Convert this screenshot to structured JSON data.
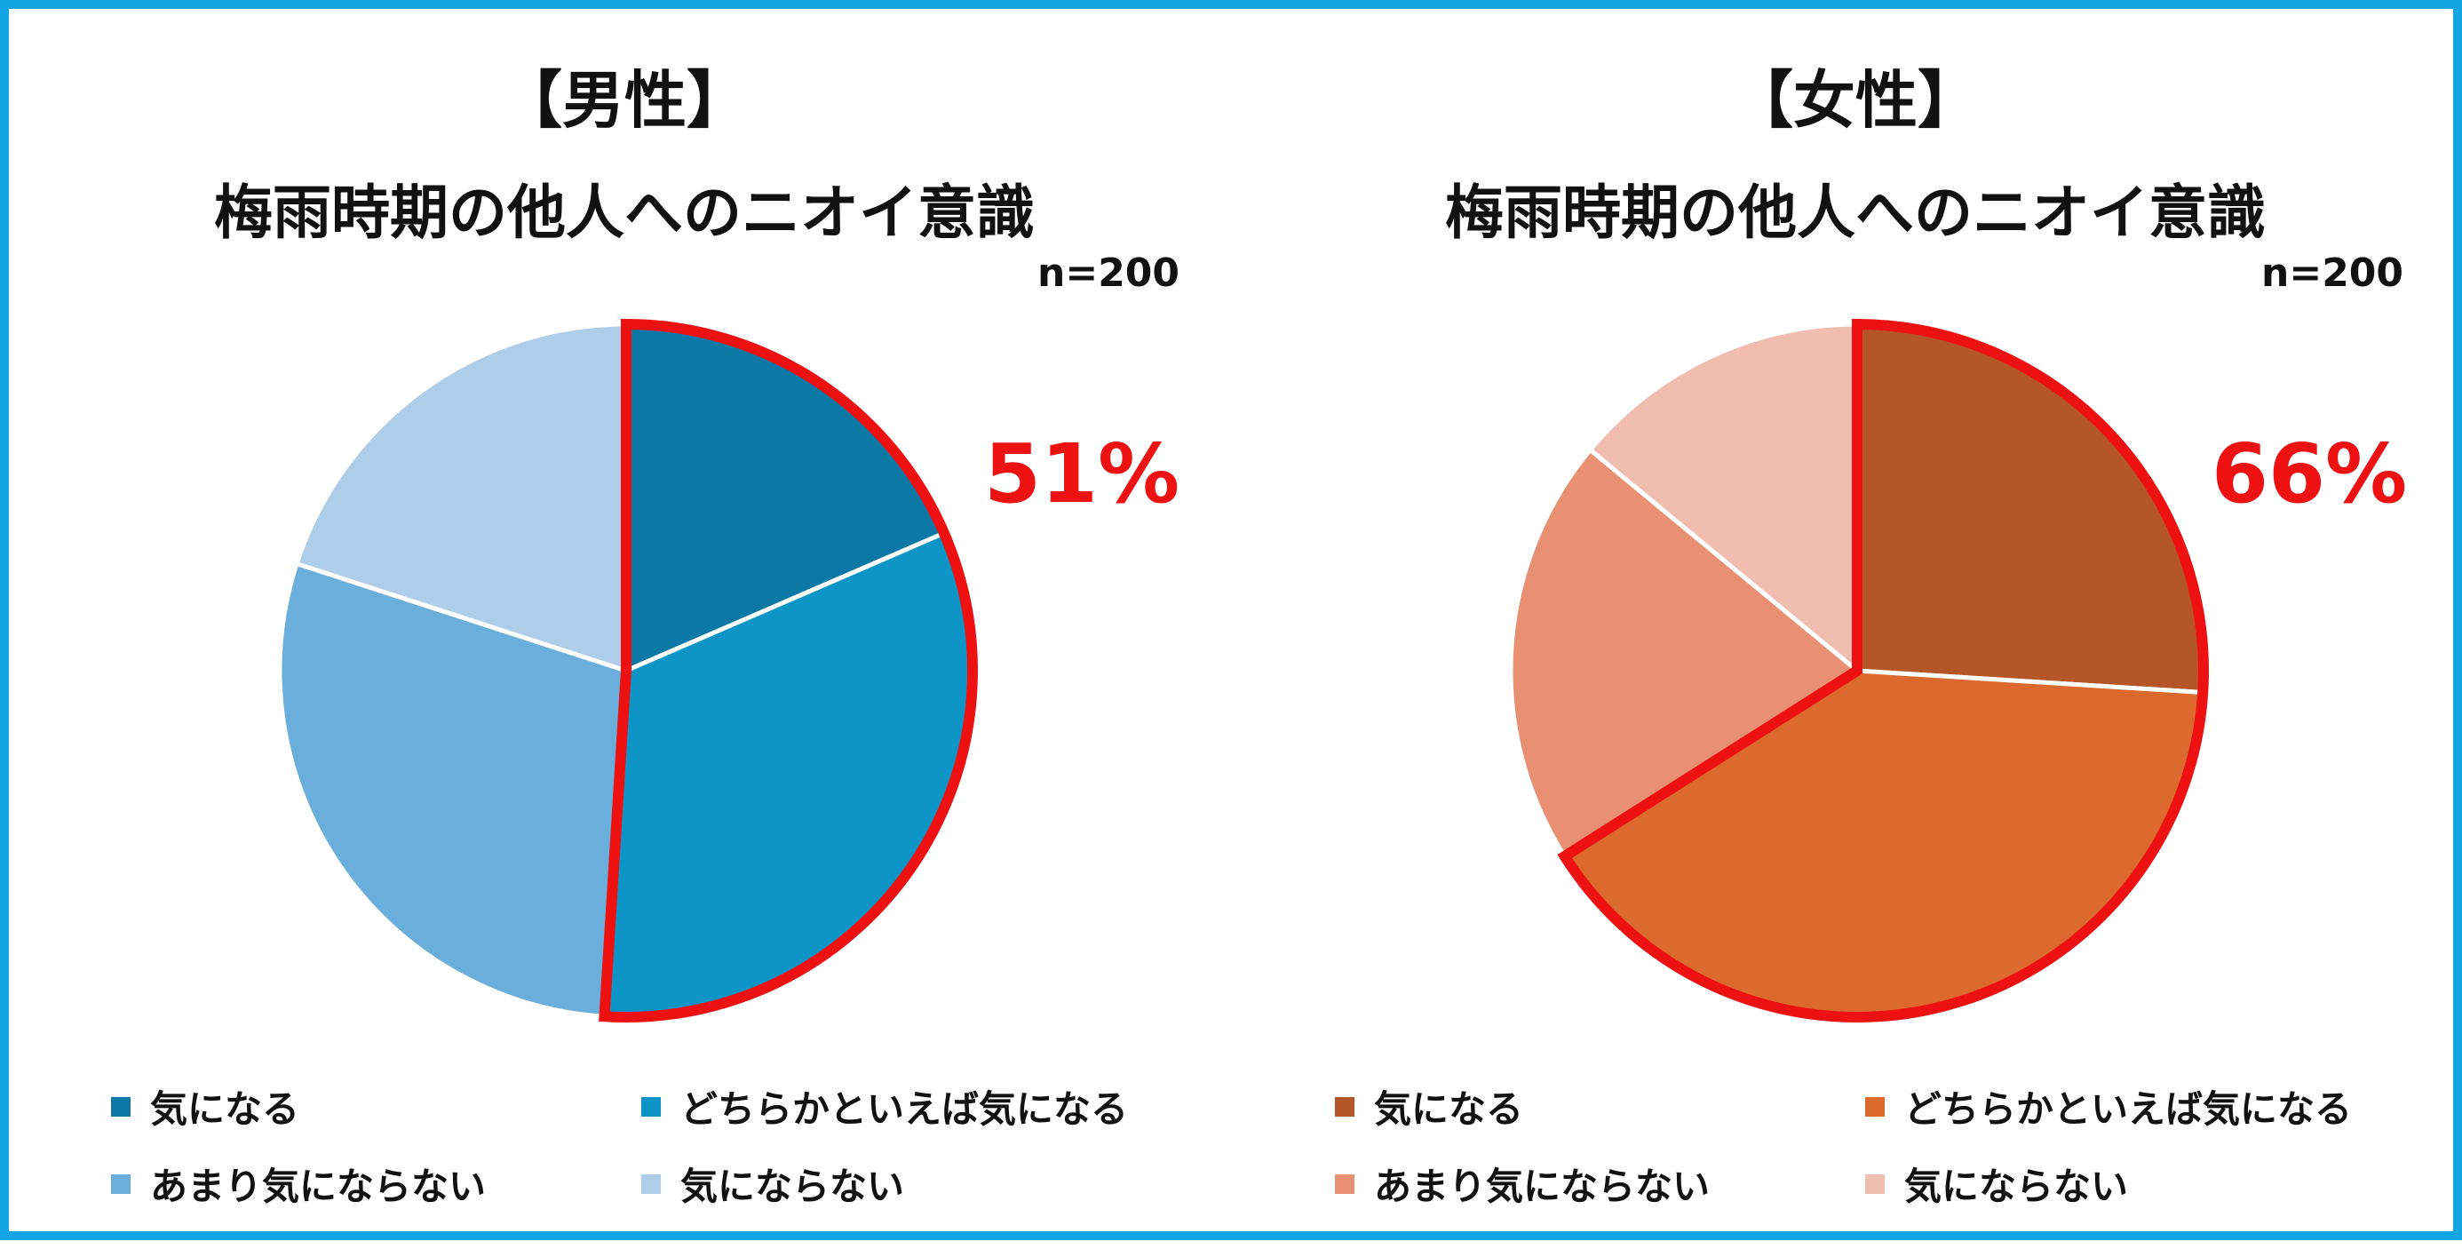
{
  "charts": [
    {
      "gender_label": "【男性】",
      "title": "梅雨時期の他人へのニオイ意識",
      "n_label": "n=200",
      "highlight_label": "51%",
      "colors": [
        "#0b78a6",
        "#0e95c8",
        "#6aafdc",
        "#aecde8"
      ],
      "highlight_color": "#ee1111"
    },
    {
      "gender_label": "【女性】",
      "title": "梅雨時期の他人へのニオイ意識",
      "n_label": "n=200",
      "highlight_label": "66%",
      "colors": [
        "#b55628",
        "#dc6a2e",
        "#e98f72",
        "#f2bdb1"
      ],
      "highlight_color": "#ee1111"
    }
  ],
  "chart_data": [
    {
      "type": "pie",
      "title": "【男性】 梅雨時期の他人へのニオイ意識",
      "categories": [
        "気になる",
        "どちらかといえば気になる",
        "あまり気にならない",
        "気にならない"
      ],
      "values": [
        18.5,
        32.5,
        29,
        20
      ],
      "highlighted_categories": [
        "気になる",
        "どちらかといえば気になる"
      ],
      "highlighted_total": 51,
      "legend": "bottom"
    },
    {
      "type": "pie",
      "title": "【女性】 梅雨時期の他人へのニオイ意識",
      "categories": [
        "気になる",
        "どちらかといえば気になる",
        "あまり気にならない",
        "気にならない"
      ],
      "values": [
        26,
        40,
        20,
        14
      ],
      "highlighted_categories": [
        "気になる",
        "どちらかといえば気になる"
      ],
      "highlighted_total": 66,
      "legend": "bottom"
    }
  ]
}
